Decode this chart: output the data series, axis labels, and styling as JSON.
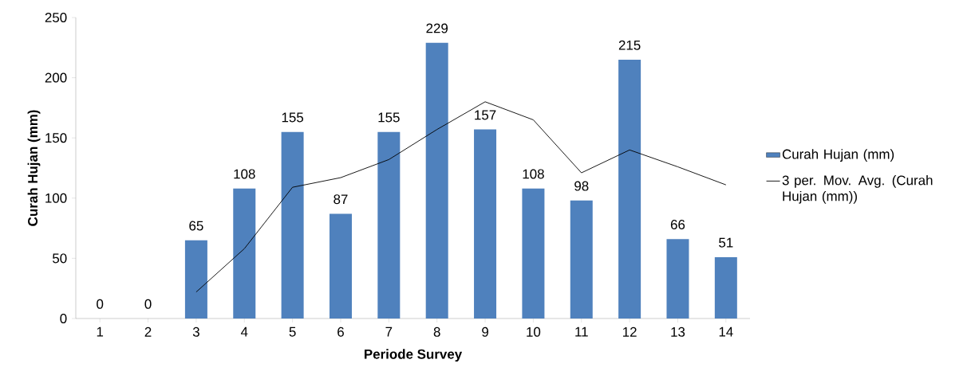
{
  "chart_data": {
    "type": "bar",
    "xlabel": "Periode Survey",
    "ylabel": "Curah Hujan (mm)",
    "categories": [
      "1",
      "2",
      "3",
      "4",
      "5",
      "6",
      "7",
      "8",
      "9",
      "10",
      "11",
      "12",
      "13",
      "14"
    ],
    "series": [
      {
        "name": "Curah Hujan (mm)",
        "color": "#4f81bd",
        "values": [
          0,
          0,
          65,
          108,
          155,
          87,
          155,
          229,
          157,
          108,
          98,
          215,
          66,
          51
        ],
        "value_labels": [
          "0",
          "0",
          "65",
          "108",
          "155",
          "87",
          "155",
          "229",
          "157",
          "108",
          "98",
          "215",
          "66",
          "51"
        ]
      },
      {
        "name": "3 per. Mov. Avg. (Curah Hujan (mm))",
        "type": "line",
        "color": "#000000",
        "values": [
          null,
          null,
          22,
          58,
          109,
          117,
          132,
          157,
          180,
          165,
          121,
          140,
          126,
          111
        ]
      }
    ],
    "ylim": [
      0,
      250
    ],
    "yticks": [
      0,
      50,
      100,
      150,
      200,
      250
    ],
    "legend": "right",
    "grid": false,
    "marker": "none"
  }
}
